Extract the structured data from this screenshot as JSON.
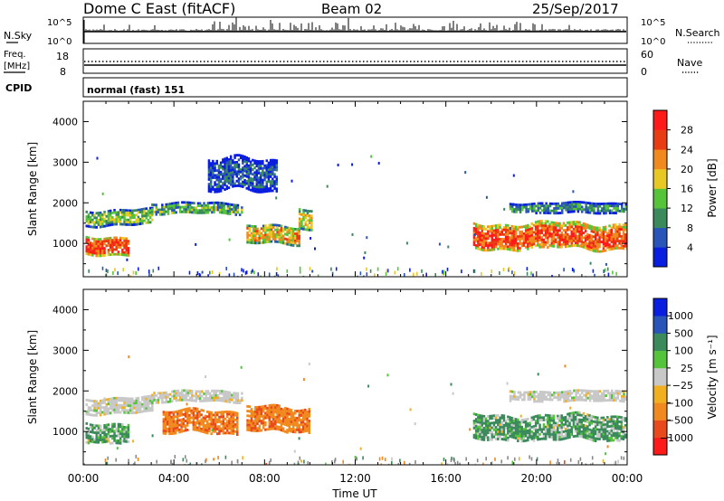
{
  "header": {
    "title": "Dome C East (fitACF)",
    "beam": "Beam 02",
    "date": "25/Sep/2017"
  },
  "strips": {
    "nsky_label": "N.Sky",
    "nsky_ticks": [
      "10^5",
      "10^0"
    ],
    "nsearch_label": "N.Search",
    "nsearch_ticks": [
      "10^5",
      "10^0"
    ],
    "freq_label_1": "Freq.",
    "freq_label_2": "[MHz]",
    "freq_ticks": [
      "18",
      "8"
    ],
    "nave_label": "Nave",
    "nave_ticks": [
      "60",
      "0"
    ],
    "cpid_label": "CPID",
    "cpid_text": "normal (fast) 151"
  },
  "colors": {
    "power": [
      "#0a1ee0",
      "#2a55b8",
      "#3a8a5c",
      "#55c43a",
      "#e8c823",
      "#f08a1e",
      "#e83c12",
      "#ff1a1a"
    ],
    "velocity": [
      "#ff1a1a",
      "#e84a1e",
      "#f08a1e",
      "#f0b020",
      "#c8c8c8",
      "#55c43a",
      "#3a8a5c",
      "#2a55b8",
      "#0a1ee0"
    ],
    "ground": "#888888",
    "black": "#000000"
  },
  "chart_data": [
    {
      "type": "heatmap",
      "name": "power",
      "xlabel": "",
      "ylabel": "Slant Range [km]",
      "xlim": [
        0,
        24
      ],
      "ylim": [
        180,
        4500
      ],
      "yticks": [
        "1000",
        "2000",
        "3000",
        "4000"
      ],
      "colorbar": {
        "label": "Power [dB]",
        "range": [
          0,
          32
        ],
        "ticks": [
          "4",
          "8",
          "12",
          "16",
          "20",
          "24",
          "28"
        ]
      },
      "features": [
        {
          "x": [
            0.1,
            2.0
          ],
          "y": [
            700,
            1250
          ],
          "value": 26
        },
        {
          "x": [
            0.1,
            3.0
          ],
          "y": [
            1400,
            1900
          ],
          "value": 14
        },
        {
          "x": [
            3.0,
            7.0
          ],
          "y": [
            1700,
            2050
          ],
          "value": 12
        },
        {
          "x": [
            5.5,
            8.5
          ],
          "y": [
            2200,
            3200
          ],
          "value": 6
        },
        {
          "x": [
            7.2,
            9.5
          ],
          "y": [
            950,
            1500
          ],
          "value": 20
        },
        {
          "x": [
            9.5,
            10.1
          ],
          "y": [
            1300,
            1900
          ],
          "value": 18
        },
        {
          "x": [
            17.2,
            24
          ],
          "y": [
            800,
            1600
          ],
          "value": 26
        },
        {
          "x": [
            18.8,
            24
          ],
          "y": [
            1750,
            2050
          ],
          "value": 10
        }
      ]
    },
    {
      "type": "heatmap",
      "name": "velocity",
      "xlabel": "Time UT",
      "ylabel": "Slant Range [km]",
      "xlim": [
        0,
        24
      ],
      "ylim": [
        180,
        4500
      ],
      "xticks": [
        "00:00",
        "04:00",
        "08:00",
        "12:00",
        "16:00",
        "20:00",
        "00:00"
      ],
      "yticks": [
        "1000",
        "2000",
        "3000",
        "4000"
      ],
      "colorbar": {
        "label": "Velocity [m s⁻¹]",
        "ticks": [
          "1000",
          "500",
          "100",
          "25",
          "−25",
          "−100",
          "−500",
          "−1000"
        ]
      },
      "features": [
        {
          "x": [
            0.1,
            2.0
          ],
          "y": [
            700,
            1300
          ],
          "value": 100
        },
        {
          "x": [
            0.1,
            3.0
          ],
          "y": [
            1400,
            1900
          ],
          "value": 0
        },
        {
          "x": [
            3.0,
            7.0
          ],
          "y": [
            1700,
            2050
          ],
          "value": 0
        },
        {
          "x": [
            3.5,
            6.8
          ],
          "y": [
            900,
            1600
          ],
          "value": -250
        },
        {
          "x": [
            7.2,
            10.0
          ],
          "y": [
            950,
            1700
          ],
          "value": -250
        },
        {
          "x": [
            17.2,
            24
          ],
          "y": [
            750,
            1500
          ],
          "value": 100
        },
        {
          "x": [
            18.8,
            24
          ],
          "y": [
            1750,
            2050
          ],
          "value": 0
        }
      ]
    }
  ]
}
